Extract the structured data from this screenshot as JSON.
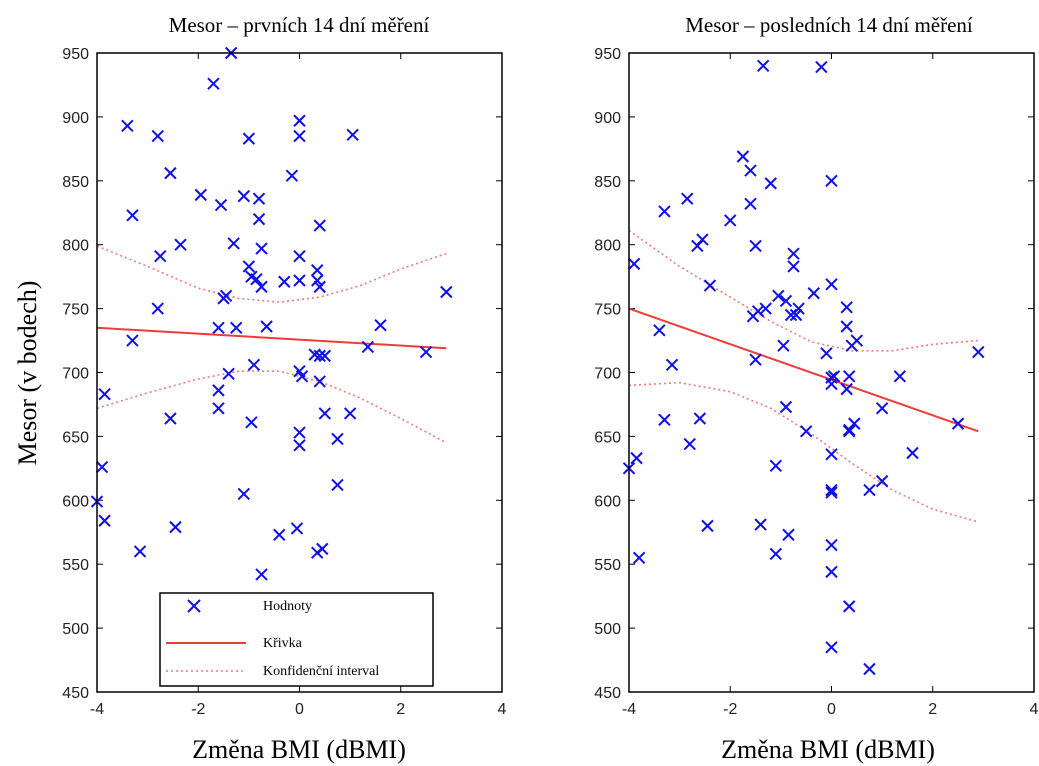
{
  "chart_data": [
    {
      "type": "scatter",
      "title": "Mesor – prvních 14 dní měření",
      "xlabel": "Změna BMI (dBMI)",
      "ylabel": "Mesor (v bodech)",
      "xlim": [
        -4,
        4
      ],
      "ylim": [
        450,
        950
      ],
      "xticks": [
        -4,
        -2,
        0,
        2,
        4
      ],
      "yticks": [
        450,
        500,
        550,
        600,
        650,
        700,
        750,
        800,
        850,
        900,
        950
      ],
      "grid": false,
      "legend": {
        "placement": "bottom-left",
        "entries": [
          "Hodnoty",
          "Křivka",
          "Konfidenční interval"
        ]
      },
      "colors": {
        "points": "#1010e8",
        "line": "#ee3b3b",
        "ci": "#f07a7a"
      },
      "series": [
        {
          "name": "Hodnoty",
          "kind": "points",
          "x": [
            -4.0,
            -3.9,
            -3.85,
            -3.85,
            -3.4,
            -3.3,
            -3.3,
            -3.15,
            -2.8,
            -2.8,
            -2.75,
            -2.55,
            -2.55,
            -2.45,
            -2.35,
            -1.95,
            -1.7,
            -1.6,
            -1.6,
            -1.6,
            -1.55,
            -1.5,
            -1.45,
            -1.4,
            -1.35,
            -1.3,
            -1.25,
            -1.1,
            -1.1,
            -1.0,
            -1.0,
            -0.95,
            -0.95,
            -0.9,
            -0.85,
            -0.8,
            -0.8,
            -0.75,
            -0.75,
            -0.75,
            -0.65,
            -0.4,
            -0.3,
            -0.15,
            -0.05,
            0.0,
            0.0,
            0.0,
            0.0,
            0.0,
            0.0,
            0.0,
            0.05,
            0.3,
            0.35,
            0.35,
            0.35,
            0.4,
            0.4,
            0.4,
            0.4,
            0.45,
            0.5,
            0.5,
            0.75,
            0.75,
            1.0,
            1.05,
            1.35,
            1.6,
            2.5,
            2.9
          ],
          "y": [
            599,
            626,
            683,
            584,
            893,
            823,
            725,
            560,
            885,
            750,
            791,
            856,
            664,
            579,
            800,
            839,
            926,
            735,
            672,
            686,
            831,
            758,
            760,
            699,
            950,
            801,
            735,
            838,
            605,
            883,
            783,
            661,
            775,
            706,
            773,
            836,
            820,
            797,
            767,
            542,
            736,
            573,
            771,
            854,
            578,
            897,
            885,
            791,
            772,
            701,
            653,
            643,
            697,
            714,
            559,
            780,
            772,
            767,
            693,
            713,
            815,
            562,
            713,
            668,
            648,
            612,
            668,
            886,
            720,
            737,
            716,
            763
          ]
        },
        {
          "name": "Křivka",
          "kind": "line",
          "x": [
            -4.0,
            2.9
          ],
          "y": [
            735,
            719
          ]
        },
        {
          "name": "Konfidenční interval",
          "kind": "ci",
          "x": [
            -4.0,
            -3.0,
            -2.0,
            -1.2,
            -0.4,
            0.4,
            1.2,
            2.0,
            2.9
          ],
          "upper": [
            799,
            783,
            766,
            758,
            755,
            759,
            768,
            781,
            793
          ],
          "lower": [
            672,
            684,
            695,
            701,
            701,
            693,
            680,
            664,
            645
          ]
        }
      ]
    },
    {
      "type": "scatter",
      "title": "Mesor – posledních 14 dní měření",
      "xlabel": "Změna BMI (dBMI)",
      "ylabel": "",
      "xlim": [
        -4,
        4
      ],
      "ylim": [
        450,
        950
      ],
      "xticks": [
        -4,
        -2,
        0,
        2,
        4
      ],
      "yticks": [
        450,
        500,
        550,
        600,
        650,
        700,
        750,
        800,
        850,
        900,
        950
      ],
      "grid": false,
      "colors": {
        "points": "#1010e8",
        "line": "#ee3b3b",
        "ci": "#f07a7a"
      },
      "series": [
        {
          "name": "Hodnoty",
          "kind": "points",
          "x": [
            -4.0,
            -3.9,
            -3.85,
            -3.8,
            -3.4,
            -3.3,
            -3.3,
            -3.15,
            -2.85,
            -2.8,
            -2.65,
            -2.6,
            -2.55,
            -2.45,
            -2.4,
            -2.0,
            -1.75,
            -1.6,
            -1.6,
            -1.55,
            -1.5,
            -1.5,
            -1.45,
            -1.4,
            -1.35,
            -1.3,
            -1.2,
            -1.1,
            -1.1,
            -1.05,
            -0.95,
            -0.9,
            -0.9,
            -0.85,
            -0.8,
            -0.75,
            -0.75,
            -0.7,
            -0.65,
            -0.5,
            -0.35,
            -0.2,
            -0.1,
            0.0,
            0.0,
            0.0,
            0.0,
            0.0,
            0.0,
            0.0,
            0.0,
            0.0,
            0.0,
            0.05,
            0.3,
            0.3,
            0.3,
            0.35,
            0.35,
            0.35,
            0.35,
            0.4,
            0.45,
            0.5,
            0.75,
            0.75,
            1.0,
            1.0,
            1.35,
            1.6,
            2.5,
            2.9
          ],
          "y": [
            625,
            785,
            633,
            555,
            733,
            826,
            663,
            706,
            836,
            644,
            799,
            664,
            804,
            580,
            768,
            819,
            869,
            858,
            832,
            744,
            710,
            799,
            748,
            581,
            940,
            750,
            848,
            627,
            558,
            760,
            721,
            673,
            756,
            573,
            745,
            783,
            793,
            745,
            750,
            654,
            762,
            939,
            715,
            850,
            769,
            696,
            636,
            608,
            606,
            565,
            544,
            485,
            691,
            697,
            751,
            736,
            687,
            655,
            517,
            654,
            697,
            721,
            660,
            725,
            468,
            608,
            615,
            672,
            697,
            637,
            660,
            716
          ]
        },
        {
          "name": "Křivka",
          "kind": "line",
          "x": [
            -4.0,
            2.9
          ],
          "y": [
            750,
            654
          ]
        },
        {
          "name": "Konfidenční interval",
          "kind": "ci",
          "x": [
            -4.0,
            -3.0,
            -2.0,
            -1.2,
            -0.4,
            0.4,
            1.2,
            2.0,
            2.9
          ],
          "upper": [
            811,
            783,
            759,
            740,
            724,
            717,
            717,
            722,
            725
          ],
          "lower": [
            690,
            692,
            685,
            672,
            652,
            629,
            608,
            593,
            583
          ]
        }
      ]
    }
  ]
}
